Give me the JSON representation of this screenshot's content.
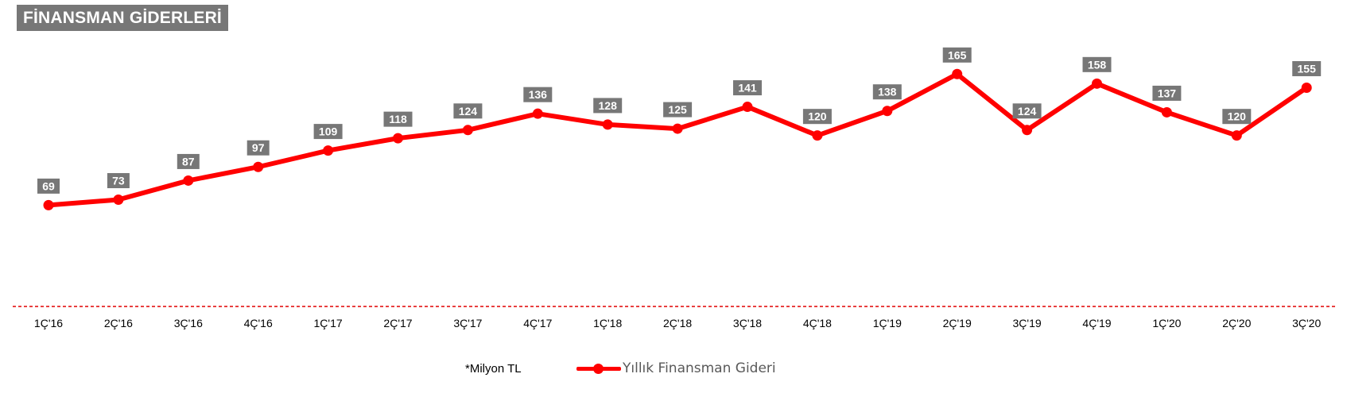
{
  "title": "FİNANSMAN GİDERLERİ",
  "note": "*Milyon TL",
  "colors": {
    "line": "#ff0000",
    "label_bg": "#777777",
    "title_bg": "#777777",
    "baseline": "#e00000"
  },
  "chart_data": {
    "type": "line",
    "categories": [
      "1Ç'16",
      "2Ç'16",
      "3Ç'16",
      "4Ç'16",
      "1Ç'17",
      "2Ç'17",
      "3Ç'17",
      "4Ç'17",
      "1Ç'18",
      "2Ç'18",
      "3Ç'18",
      "4Ç'18",
      "1Ç'19",
      "2Ç'19",
      "3Ç'19",
      "4Ç'19",
      "1Ç'20",
      "2Ç'20",
      "3Ç'20"
    ],
    "series": [
      {
        "name": "Yıllık Finansman Gideri",
        "values": [
          69,
          73,
          87,
          97,
          109,
          118,
          124,
          136,
          128,
          125,
          141,
          120,
          138,
          165,
          124,
          158,
          137,
          120,
          155
        ]
      }
    ],
    "data_labels": true,
    "legend_position": "bottom",
    "grid": false,
    "baseline_style": "dashed"
  }
}
